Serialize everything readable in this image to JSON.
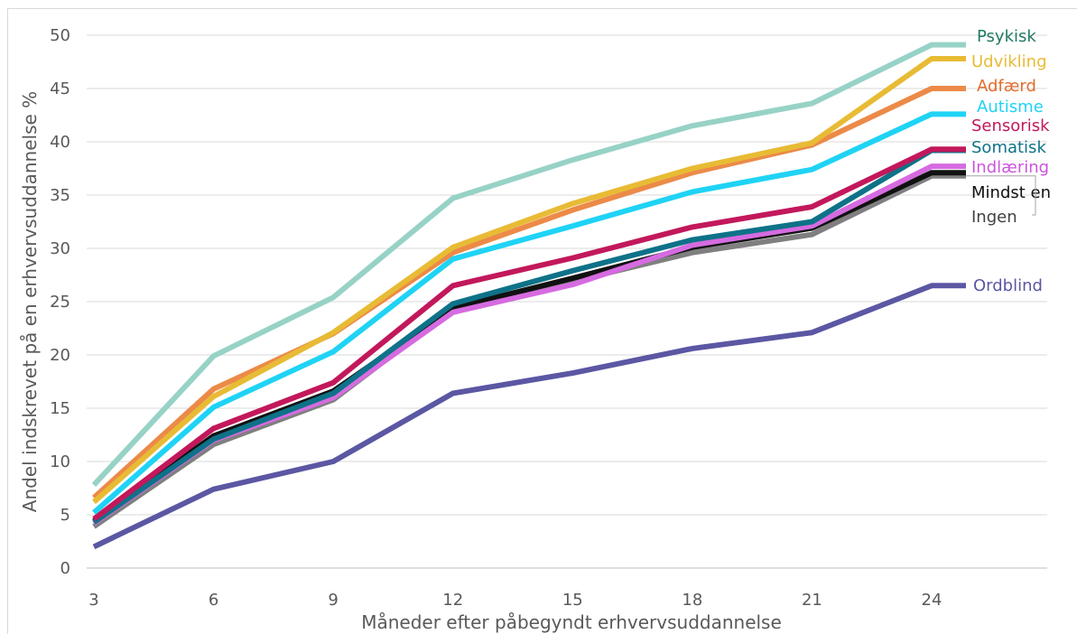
{
  "chart_data": {
    "type": "line",
    "title": "",
    "xlabel": "Måneder efter påbegyndt erhvervsuddannelse",
    "ylabel": "Andel indskrevet på en erhvervsuddannelse %",
    "x": [
      3,
      6,
      9,
      12,
      15,
      18,
      21,
      24
    ],
    "xlim": [
      3,
      24
    ],
    "ylim": [
      0,
      50
    ],
    "y_ticks": [
      0,
      5,
      10,
      15,
      20,
      25,
      30,
      35,
      40,
      45,
      50
    ],
    "grid": true,
    "legend": "right (labels at line ends)",
    "series": [
      {
        "name": "Psykisk",
        "color": "#97d2c6",
        "label_color": "#1f7a64",
        "values": [
          7.8,
          19.9,
          25.4,
          34.7,
          38.3,
          41.5,
          43.6,
          49.1
        ]
      },
      {
        "name": "Udvikling",
        "color": "#e8bb35",
        "label_color": "#e8bb35",
        "values": [
          6.2,
          16.1,
          22.1,
          30.1,
          34.2,
          37.5,
          39.9,
          47.8
        ]
      },
      {
        "name": "Adfærd",
        "color": "#ec8a48",
        "label_color": "#e36c2c",
        "values": [
          6.6,
          16.8,
          22.0,
          29.6,
          33.6,
          37.1,
          39.7,
          45.0
        ]
      },
      {
        "name": "Autisme",
        "color": "#1fd3f5",
        "label_color": "#1fd3f5",
        "values": [
          5.2,
          15.1,
          20.3,
          29.0,
          32.1,
          35.3,
          37.4,
          42.6
        ]
      },
      {
        "name": "Sensorisk",
        "color": "#c2185b",
        "label_color": "#c2185b",
        "values": [
          4.6,
          13.1,
          17.4,
          26.5,
          29.1,
          32.0,
          33.9,
          39.3
        ]
      },
      {
        "name": "Somatisk",
        "color": "#0e7288",
        "label_color": "#0e7288",
        "values": [
          4.3,
          12.1,
          16.4,
          24.8,
          27.9,
          30.8,
          32.5,
          39.2
        ]
      },
      {
        "name": "Indlæring",
        "color": "#d66be0",
        "label_color": "#cc55dd",
        "values": [
          4.2,
          12.0,
          16.0,
          24.0,
          26.6,
          30.3,
          32.1,
          37.7
        ]
      },
      {
        "name": "Mindst en",
        "color": "#111111",
        "label_color": "#111111",
        "values": [
          4.4,
          12.4,
          16.6,
          24.4,
          27.2,
          30.1,
          31.9,
          37.1
        ]
      },
      {
        "name": "Ingen",
        "color": "#7f7f7f",
        "label_color": "#404040",
        "values": [
          3.9,
          11.6,
          15.8,
          24.3,
          26.9,
          29.6,
          31.3,
          36.8
        ]
      },
      {
        "name": "Ordblind",
        "color": "#5b57a3",
        "label_color": "#5b57a3",
        "values": [
          2.0,
          7.4,
          10.0,
          16.4,
          18.3,
          20.6,
          22.1,
          26.5
        ]
      }
    ]
  }
}
